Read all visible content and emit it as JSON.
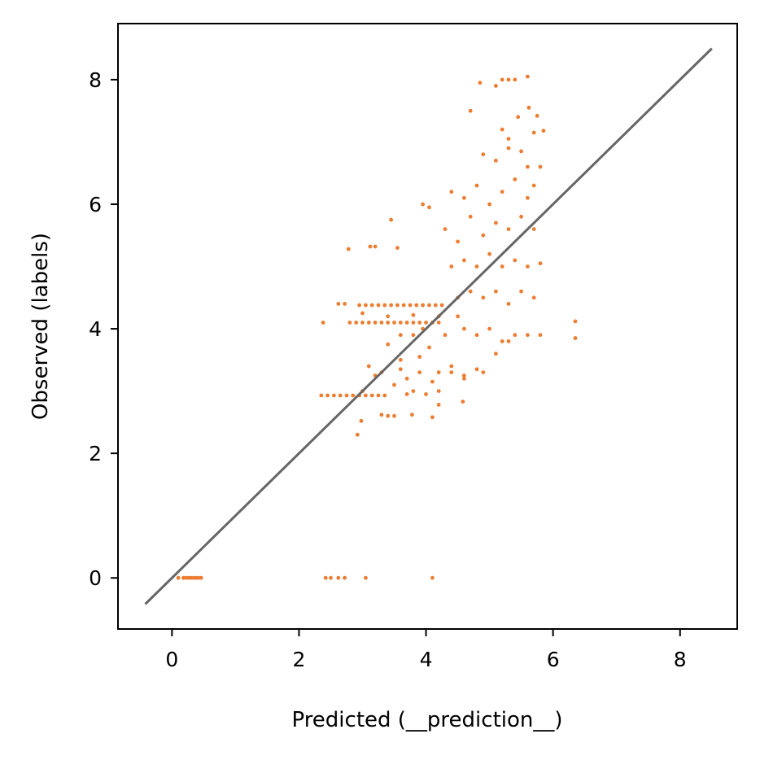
{
  "chart_data": {
    "type": "scatter",
    "xlabel": "Predicted (__prediction__)",
    "ylabel": "Observed (labels)",
    "xlim": [
      -0.85,
      8.9
    ],
    "ylim": [
      -0.82,
      8.9
    ],
    "xticks": [
      0,
      2,
      4,
      6,
      8
    ],
    "yticks": [
      0,
      2,
      4,
      6,
      8
    ],
    "grid": false,
    "marker_color": "#ed7d31",
    "line_color": "#666666",
    "reference_line": {
      "x": [
        -0.42,
        8.5
      ],
      "y": [
        -0.42,
        8.5
      ]
    },
    "points": [
      [
        0.1,
        0
      ],
      [
        0.18,
        0
      ],
      [
        0.22,
        0
      ],
      [
        0.26,
        0
      ],
      [
        0.3,
        0
      ],
      [
        0.34,
        0
      ],
      [
        0.38,
        0
      ],
      [
        0.42,
        0
      ],
      [
        0.46,
        0
      ],
      [
        2.42,
        0
      ],
      [
        2.5,
        0
      ],
      [
        2.62,
        0
      ],
      [
        2.72,
        0
      ],
      [
        3.05,
        0
      ],
      [
        4.1,
        0
      ],
      [
        2.35,
        2.93
      ],
      [
        2.45,
        2.93
      ],
      [
        2.55,
        2.93
      ],
      [
        2.65,
        2.93
      ],
      [
        2.75,
        2.93
      ],
      [
        2.85,
        2.93
      ],
      [
        2.95,
        2.93
      ],
      [
        3.05,
        2.93
      ],
      [
        3.15,
        2.93
      ],
      [
        3.25,
        2.93
      ],
      [
        3.35,
        2.93
      ],
      [
        2.92,
        2.3
      ],
      [
        2.98,
        2.52
      ],
      [
        3.3,
        2.62
      ],
      [
        3.4,
        2.6
      ],
      [
        3.5,
        2.6
      ],
      [
        3.78,
        2.62
      ],
      [
        4.1,
        2.58
      ],
      [
        4.2,
        2.78
      ],
      [
        4.58,
        2.83
      ],
      [
        2.38,
        4.1
      ],
      [
        2.62,
        4.4
      ],
      [
        2.72,
        4.4
      ],
      [
        2.8,
        4.1
      ],
      [
        2.78,
        5.28
      ],
      [
        3.12,
        5.32
      ],
      [
        3.2,
        5.32
      ],
      [
        3.45,
        5.75
      ],
      [
        3.55,
        5.3
      ],
      [
        3.95,
        6.0
      ],
      [
        4.05,
        5.95
      ],
      [
        2.9,
        4.1
      ],
      [
        3.0,
        4.1
      ],
      [
        3.1,
        4.1
      ],
      [
        3.2,
        4.1
      ],
      [
        3.3,
        4.1
      ],
      [
        3.4,
        4.1
      ],
      [
        3.5,
        4.1
      ],
      [
        3.6,
        4.1
      ],
      [
        3.7,
        4.1
      ],
      [
        3.8,
        4.1
      ],
      [
        3.9,
        4.1
      ],
      [
        4.0,
        4.1
      ],
      [
        4.1,
        4.1
      ],
      [
        4.2,
        4.1
      ],
      [
        2.95,
        4.38
      ],
      [
        3.05,
        4.38
      ],
      [
        3.15,
        4.38
      ],
      [
        3.25,
        4.38
      ],
      [
        3.35,
        4.38
      ],
      [
        3.45,
        4.38
      ],
      [
        3.55,
        4.38
      ],
      [
        3.65,
        4.38
      ],
      [
        3.75,
        4.38
      ],
      [
        3.85,
        4.38
      ],
      [
        3.95,
        4.38
      ],
      [
        4.05,
        4.38
      ],
      [
        4.15,
        4.38
      ],
      [
        4.25,
        4.38
      ],
      [
        3.0,
        4.25
      ],
      [
        3.4,
        4.2
      ],
      [
        3.8,
        4.22
      ],
      [
        4.2,
        4.2
      ],
      [
        4.5,
        4.2
      ],
      [
        3.1,
        3.4
      ],
      [
        3.3,
        3.3
      ],
      [
        3.5,
        3.1
      ],
      [
        3.7,
        3.2
      ],
      [
        3.9,
        3.3
      ],
      [
        4.2,
        3.3
      ],
      [
        4.4,
        3.4
      ],
      [
        4.6,
        3.2
      ],
      [
        4.8,
        3.35
      ],
      [
        4.9,
        3.3
      ],
      [
        5.1,
        3.6
      ],
      [
        5.3,
        3.8
      ],
      [
        3.0,
        3.0
      ],
      [
        3.2,
        3.25
      ],
      [
        3.6,
        3.5
      ],
      [
        3.8,
        3.0
      ],
      [
        4.0,
        2.95
      ],
      [
        4.4,
        3.3
      ],
      [
        4.6,
        3.25
      ],
      [
        3.4,
        3.75
      ],
      [
        3.6,
        3.9
      ],
      [
        3.9,
        3.55
      ],
      [
        4.3,
        3.9
      ],
      [
        4.6,
        4.0
      ],
      [
        4.8,
        3.9
      ],
      [
        5.0,
        4.0
      ],
      [
        5.2,
        3.8
      ],
      [
        5.4,
        3.9
      ],
      [
        5.6,
        3.9
      ],
      [
        4.5,
        4.5
      ],
      [
        4.7,
        4.6
      ],
      [
        4.9,
        4.5
      ],
      [
        5.1,
        4.6
      ],
      [
        5.3,
        4.4
      ],
      [
        5.5,
        4.6
      ],
      [
        5.7,
        4.5
      ],
      [
        4.4,
        5.0
      ],
      [
        4.6,
        5.1
      ],
      [
        4.8,
        5.0
      ],
      [
        5.0,
        5.2
      ],
      [
        5.2,
        5.0
      ],
      [
        5.4,
        5.1
      ],
      [
        5.6,
        5.0
      ],
      [
        5.8,
        5.05
      ],
      [
        4.3,
        5.6
      ],
      [
        4.5,
        5.4
      ],
      [
        4.7,
        5.8
      ],
      [
        4.9,
        5.5
      ],
      [
        5.1,
        5.7
      ],
      [
        5.3,
        5.6
      ],
      [
        5.5,
        5.8
      ],
      [
        5.7,
        5.6
      ],
      [
        4.4,
        6.2
      ],
      [
        4.6,
        6.1
      ],
      [
        4.8,
        6.3
      ],
      [
        5.0,
        6.0
      ],
      [
        5.2,
        6.2
      ],
      [
        5.4,
        6.4
      ],
      [
        5.6,
        6.1
      ],
      [
        5.7,
        6.3
      ],
      [
        4.9,
        6.8
      ],
      [
        5.1,
        6.7
      ],
      [
        5.3,
        6.9
      ],
      [
        5.5,
        6.85
      ],
      [
        5.6,
        6.6
      ],
      [
        5.8,
        6.6
      ],
      [
        5.2,
        7.2
      ],
      [
        5.45,
        7.4
      ],
      [
        5.7,
        7.15
      ],
      [
        5.85,
        7.18
      ],
      [
        5.3,
        7.05
      ],
      [
        4.85,
        7.95
      ],
      [
        5.2,
        8.0
      ],
      [
        5.3,
        8.0
      ],
      [
        5.4,
        8.0
      ],
      [
        5.6,
        8.05
      ],
      [
        5.1,
        7.9
      ],
      [
        4.7,
        7.5
      ],
      [
        5.62,
        7.55
      ],
      [
        5.75,
        7.42
      ],
      [
        6.35,
        3.85
      ],
      [
        6.35,
        4.12
      ],
      [
        5.8,
        3.9
      ],
      [
        4.2,
        3.0
      ],
      [
        4.1,
        3.15
      ],
      [
        3.7,
        2.95
      ],
      [
        3.6,
        3.35
      ],
      [
        3.8,
        3.9
      ],
      [
        3.95,
        4.0
      ],
      [
        4.05,
        3.7
      ]
    ]
  }
}
